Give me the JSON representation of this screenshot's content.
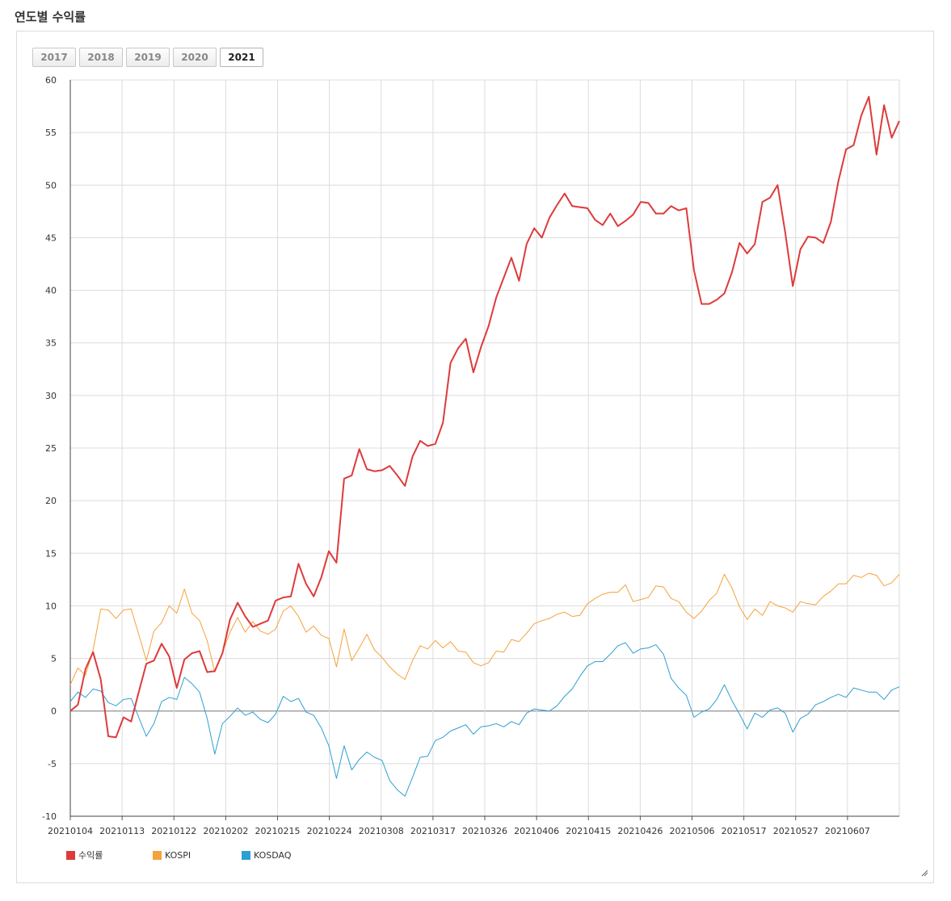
{
  "header": {
    "title": "연도별 수익률"
  },
  "year_tabs": [
    {
      "label": "2017",
      "active": false
    },
    {
      "label": "2018",
      "active": false
    },
    {
      "label": "2019",
      "active": false
    },
    {
      "label": "2020",
      "active": false
    },
    {
      "label": "2021",
      "active": true
    }
  ],
  "chart_data": {
    "type": "line",
    "title": "",
    "xlabel": "",
    "ylabel": "",
    "ylim": [
      -10,
      60
    ],
    "yticks": [
      -10,
      -5,
      0,
      5,
      10,
      15,
      20,
      25,
      30,
      35,
      40,
      45,
      50,
      55,
      60
    ],
    "xtick_labels": [
      "20210104",
      "20210113",
      "20210122",
      "20210202",
      "20210215",
      "20210224",
      "20210308",
      "20210317",
      "20210326",
      "20210406",
      "20210415",
      "20210426",
      "20210506",
      "20210517",
      "20210527",
      "20210607"
    ],
    "grid": true,
    "legend_position": "bottom-left",
    "series": [
      {
        "name": "수익률",
        "color": "#dd3b3b",
        "values": [
          0.0,
          0.6,
          4.0,
          5.6,
          3.0,
          -2.4,
          -2.5,
          -0.6,
          -1.0,
          1.8,
          4.5,
          4.8,
          6.4,
          5.2,
          2.2,
          4.9,
          5.5,
          5.7,
          3.7,
          3.8,
          5.5,
          8.7,
          10.3,
          9.0,
          8.0,
          8.3,
          8.6,
          10.5,
          10.8,
          10.9,
          14.0,
          12.1,
          10.9,
          12.7,
          15.2,
          14.1,
          22.1,
          22.4,
          24.9,
          23.0,
          22.8,
          22.9,
          23.3,
          22.4,
          21.4,
          24.2,
          25.7,
          25.2,
          25.4,
          27.4,
          33.1,
          34.5,
          35.4,
          32.2,
          34.6,
          36.6,
          39.3,
          41.2,
          43.1,
          40.9,
          44.4,
          45.9,
          45.0,
          46.9,
          48.1,
          49.2,
          48.0,
          47.9,
          47.8,
          46.7,
          46.2,
          47.3,
          46.1,
          46.6,
          47.2,
          48.4,
          48.3,
          47.3,
          47.3,
          48.0,
          47.6,
          47.8,
          41.9,
          38.7,
          38.7,
          39.1,
          39.7,
          41.7,
          44.5,
          43.5,
          44.4,
          48.4,
          48.8,
          50.0,
          45.5,
          40.4,
          43.9,
          45.1,
          45.0,
          44.5,
          46.5,
          50.4,
          53.4,
          53.8,
          56.6,
          58.4,
          52.9,
          57.6,
          54.5,
          56.1
        ]
      },
      {
        "name": "KOSPI",
        "color": "#f5a23a",
        "values": [
          2.5,
          4.1,
          3.4,
          5.8,
          9.7,
          9.6,
          8.8,
          9.6,
          9.7,
          7.3,
          4.8,
          7.6,
          8.4,
          10.0,
          9.3,
          11.6,
          9.3,
          8.6,
          6.7,
          3.7,
          5.6,
          7.5,
          8.9,
          7.5,
          8.5,
          7.6,
          7.3,
          7.8,
          9.5,
          10.0,
          9.0,
          7.5,
          8.1,
          7.2,
          6.9,
          4.2,
          7.8,
          4.8,
          6.0,
          7.3,
          5.8,
          5.1,
          4.2,
          3.5,
          3.0,
          4.8,
          6.2,
          5.9,
          6.7,
          6.0,
          6.6,
          5.7,
          5.6,
          4.6,
          4.3,
          4.6,
          5.7,
          5.6,
          6.8,
          6.6,
          7.4,
          8.3,
          8.6,
          8.8,
          9.2,
          9.4,
          9.0,
          9.1,
          10.2,
          10.7,
          11.1,
          11.3,
          11.3,
          12.0,
          10.4,
          10.6,
          10.8,
          11.9,
          11.8,
          10.7,
          10.4,
          9.4,
          8.8,
          9.5,
          10.5,
          11.2,
          13.0,
          11.7,
          9.9,
          8.7,
          9.7,
          9.1,
          10.4,
          10.0,
          9.8,
          9.4,
          10.4,
          10.2,
          10.1,
          10.9,
          11.4,
          12.1,
          12.1,
          12.9,
          12.7,
          13.1,
          12.9,
          11.9,
          12.2,
          13.0
        ]
      },
      {
        "name": "KOSDAQ",
        "color": "#2e9fd1",
        "values": [
          0.9,
          1.8,
          1.3,
          2.1,
          1.9,
          0.8,
          0.5,
          1.1,
          1.2,
          -0.6,
          -2.4,
          -1.2,
          0.9,
          1.3,
          1.1,
          3.2,
          2.6,
          1.8,
          -0.7,
          -4.1,
          -1.2,
          -0.5,
          0.3,
          -0.4,
          -0.1,
          -0.8,
          -1.1,
          -0.3,
          1.4,
          0.9,
          1.2,
          -0.1,
          -0.4,
          -1.6,
          -3.3,
          -6.4,
          -3.3,
          -5.6,
          -4.6,
          -3.9,
          -4.4,
          -4.7,
          -6.6,
          -7.5,
          -8.1,
          -6.3,
          -4.4,
          -4.3,
          -2.8,
          -2.5,
          -1.9,
          -1.6,
          -1.3,
          -2.2,
          -1.5,
          -1.4,
          -1.2,
          -1.5,
          -1.0,
          -1.3,
          -0.2,
          0.2,
          0.1,
          0.0,
          0.5,
          1.4,
          2.1,
          3.3,
          4.3,
          4.7,
          4.7,
          5.4,
          6.2,
          6.5,
          5.5,
          5.9,
          6.0,
          6.3,
          5.4,
          3.1,
          2.2,
          1.5,
          -0.6,
          -0.1,
          0.2,
          1.1,
          2.5,
          1.0,
          -0.3,
          -1.7,
          -0.2,
          -0.6,
          0.1,
          0.3,
          -0.2,
          -2.0,
          -0.7,
          -0.3,
          0.6,
          0.9,
          1.3,
          1.6,
          1.3,
          2.2,
          2.0,
          1.8,
          1.8,
          1.1,
          2.0,
          2.3
        ]
      }
    ]
  }
}
